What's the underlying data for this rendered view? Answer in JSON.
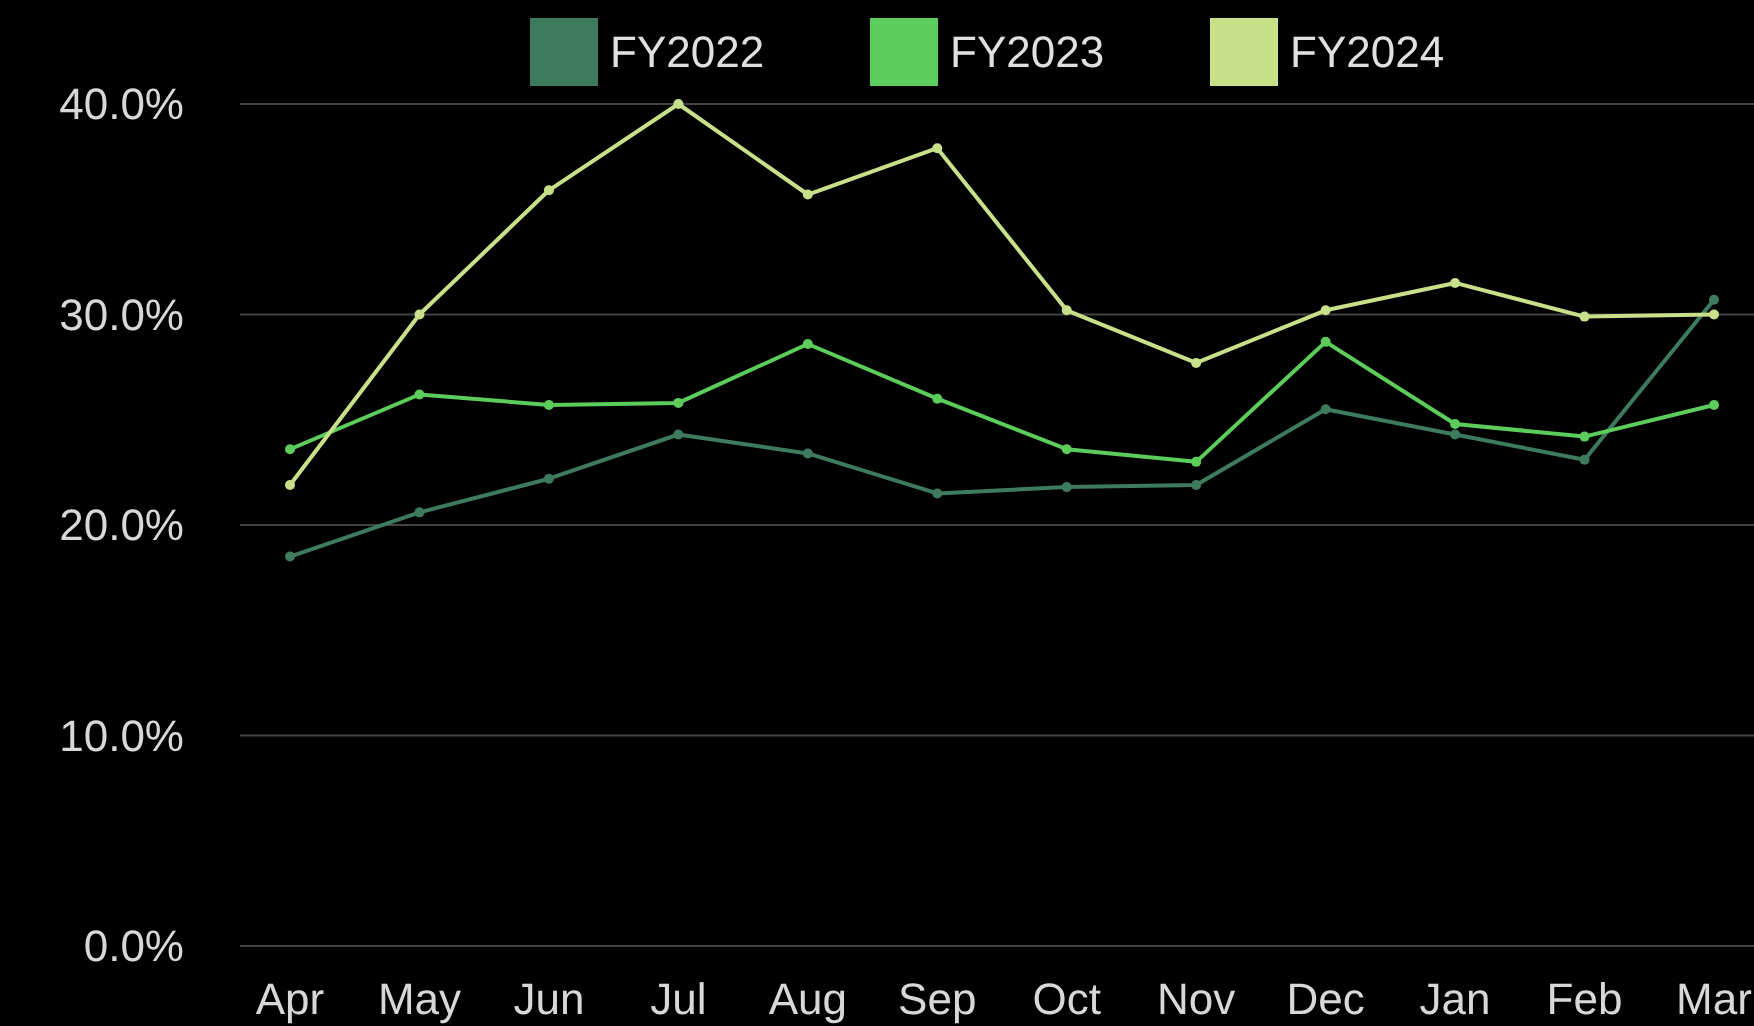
{
  "chart_data": {
    "type": "line",
    "categories": [
      "Apr",
      "May",
      "Jun",
      "Jul",
      "Aug",
      "Sep",
      "Oct",
      "Nov",
      "Dec",
      "Jan",
      "Feb",
      "Mar"
    ],
    "series": [
      {
        "name": "FY2022",
        "color": "#3d7a5e",
        "values": [
          18.5,
          20.6,
          22.2,
          24.3,
          23.4,
          21.5,
          21.8,
          21.9,
          25.5,
          24.3,
          23.1,
          30.7
        ]
      },
      {
        "name": "FY2023",
        "color": "#5ccc5a",
        "values": [
          23.6,
          26.2,
          25.7,
          25.8,
          28.6,
          26.0,
          23.6,
          23.0,
          28.7,
          24.8,
          24.2,
          25.7
        ]
      },
      {
        "name": "FY2024",
        "color": "#c8e08a",
        "values": [
          21.9,
          30.0,
          35.9,
          40.0,
          35.7,
          37.9,
          30.2,
          27.7,
          30.2,
          31.5,
          29.9,
          30.0
        ]
      }
    ],
    "ylim": [
      0,
      40
    ],
    "yticks": [
      {
        "value": 0,
        "label": "0.0%"
      },
      {
        "value": 10,
        "label": "10.0%"
      },
      {
        "value": 20,
        "label": "20.0%"
      },
      {
        "value": 30,
        "label": "30.0%"
      },
      {
        "value": 40,
        "label": "40.0%"
      }
    ],
    "grid": "y",
    "legend": "top",
    "marker": "circle",
    "line_style": "solid"
  }
}
